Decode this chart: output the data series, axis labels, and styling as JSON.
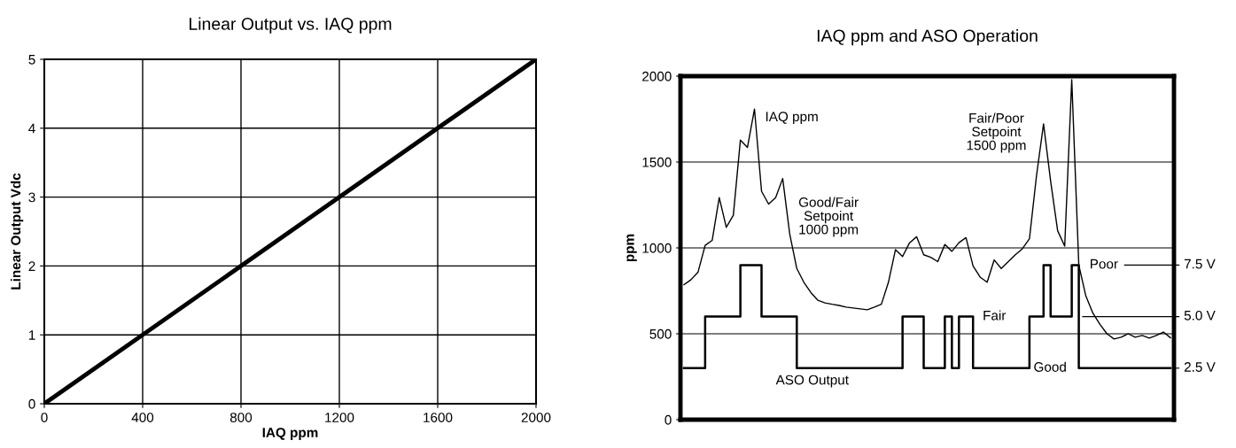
{
  "chart_data": [
    {
      "type": "line",
      "title": "Linear Output vs. IAQ ppm",
      "xlabel": "IAQ ppm",
      "ylabel": "Linear Output Vdc",
      "x": [
        0,
        2000
      ],
      "series": [
        {
          "color": "#000000",
          "values": [
            0,
            5
          ]
        }
      ],
      "xlim": [
        0,
        2000
      ],
      "ylim": [
        0,
        5
      ],
      "xticks": [
        0,
        400,
        800,
        1200,
        1600,
        2000
      ],
      "yticks": [
        0,
        1,
        2,
        3,
        4,
        5
      ],
      "grid": true,
      "tick_labels": true
    },
    {
      "type": "line",
      "title": "IAQ ppm and ASO Operation",
      "ylabel": "ppm",
      "categories": [
        null,
        null,
        null,
        null,
        null,
        null,
        null,
        null,
        null,
        null,
        null,
        null,
        null,
        null,
        null,
        null,
        null,
        null,
        null,
        null,
        null,
        null,
        null,
        null,
        null,
        null,
        null,
        null,
        null,
        null,
        null,
        null,
        null,
        null,
        null,
        null,
        null,
        null,
        null,
        null,
        null,
        null,
        null,
        null,
        null,
        null,
        null,
        null,
        null,
        null,
        null,
        null,
        null,
        null,
        null,
        null,
        null,
        null,
        null,
        null,
        null,
        null,
        null,
        null,
        null,
        null,
        null,
        null,
        null,
        null
      ],
      "series": [
        {
          "name": "IAQ ppm",
          "color": "#000000",
          "values": [
            786,
            815,
            860,
            1015,
            1044,
            1293,
            1120,
            1190,
            1628,
            1585,
            1808,
            1330,
            1255,
            1293,
            1404,
            1080,
            880,
            800,
            740,
            695,
            680,
            672,
            665,
            655,
            650,
            645,
            640,
            655,
            672,
            800,
            990,
            950,
            1030,
            1065,
            960,
            945,
            920,
            1020,
            980,
            1030,
            1060,
            895,
            830,
            800,
            930,
            880,
            920,
            960,
            995,
            1053,
            1420,
            1722,
            1390,
            1100,
            1010,
            1980,
            900,
            720,
            620,
            555,
            500,
            470,
            480,
            500,
            480,
            490,
            475,
            490,
            510,
            477
          ]
        },
        {
          "name": "ASO Output",
          "type": "step",
          "color": "#000000",
          "values": [
            300,
            300,
            300,
            600,
            600,
            600,
            600,
            600,
            900,
            900,
            900,
            600,
            600,
            600,
            600,
            600,
            300,
            300,
            300,
            300,
            300,
            300,
            300,
            300,
            300,
            300,
            300,
            300,
            300,
            300,
            300,
            600,
            600,
            600,
            300,
            300,
            300,
            600,
            300,
            600,
            600,
            300,
            300,
            300,
            300,
            300,
            300,
            300,
            300,
            600,
            600,
            900,
            600,
            600,
            600,
            900,
            300,
            300,
            300,
            300,
            300,
            300,
            300,
            300,
            300,
            300,
            300,
            300,
            300,
            300
          ]
        }
      ],
      "ylim": [
        0,
        2000
      ],
      "yticks": [
        0,
        500,
        1000,
        1500,
        2000
      ],
      "grid": "y",
      "tick_labels": "y",
      "annotations": [
        "Good/Fair\nSetpoint\n1000 ppm",
        "Fair/Poor\nSetpoint\n1500 ppm",
        "Poor",
        "Fair",
        "Good",
        "7.5 V",
        "5.0 V",
        "2.5 V"
      ]
    }
  ]
}
